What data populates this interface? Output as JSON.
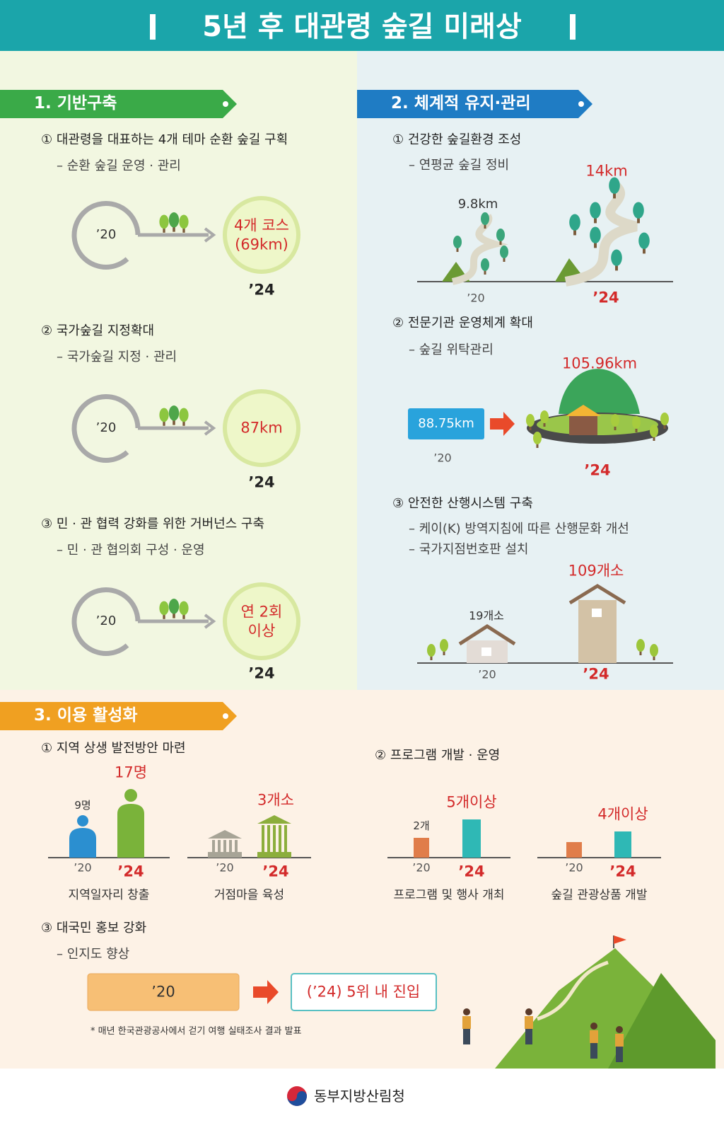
{
  "header": {
    "title": "5년 후 대관령 숲길 미래상"
  },
  "section1": {
    "title": "1. 기반구축",
    "items": [
      {
        "heading": "① 대관령을 대표하는 4개 테마 순환 숲길 구획",
        "sub": "– 순환 숲길 운영 · 관리",
        "from": "’20",
        "to": [
          "4개 코스",
          "(69km)"
        ],
        "year": "’24"
      },
      {
        "heading": "② 국가숲길 지정확대",
        "sub": "– 국가숲길 지정 · 관리",
        "from": "’20",
        "to": [
          "87km"
        ],
        "year": "’24"
      },
      {
        "heading": "③ 민 · 관 협력 강화를 위한 거버넌스 구축",
        "sub": "– 민 · 관 협의회 구성 · 운영",
        "from": "’20",
        "to": [
          "연 2회",
          "이상"
        ],
        "year": "’24"
      }
    ]
  },
  "section2": {
    "title": "2. 체계적 유지·관리",
    "items": [
      {
        "heading": "① 건강한 숲길환경 조성",
        "subs": [
          "– 연평균 숲길 정비"
        ],
        "before": "9.8km",
        "after": "14km",
        "year_before": "’20",
        "year_after": "’24"
      },
      {
        "heading": "② 전문기관 운영체계 확대",
        "subs": [
          "– 숲길 위탁관리"
        ],
        "before": "88.75km",
        "after": "105.96km",
        "year_before": "’20",
        "year_after": "’24"
      },
      {
        "heading": "③ 안전한 산행시스템 구축",
        "subs": [
          "– 케이(K) 방역지침에 따른 산행문화 개선",
          "– 국가지점번호판 설치"
        ],
        "before": "19개소",
        "after": "109개소",
        "year_before": "’20",
        "year_after": "’24"
      }
    ]
  },
  "section3": {
    "title": "3. 이용 활성화",
    "item1": {
      "heading": "① 지역 상생 발전방안 마련",
      "charts": [
        {
          "before": "9명",
          "after": "17명",
          "year_before": "’20",
          "year_after": "’24",
          "caption": "지역일자리 창출"
        },
        {
          "after": "3개소",
          "year_before": "’20",
          "year_after": "’24",
          "caption": "거점마을 육성"
        }
      ]
    },
    "item2": {
      "heading": "② 프로그램 개발 · 운영",
      "charts": [
        {
          "before": "2개",
          "after": "5개이상",
          "year_before": "’20",
          "year_after": "’24",
          "caption": "프로그램 및 행사 개최"
        },
        {
          "after": "4개이상",
          "year_before": "’20",
          "year_after": "’24",
          "caption": "숲길 관광상품 개발"
        }
      ]
    },
    "item3": {
      "heading": "③ 대국민 홍보 강화",
      "sub": "– 인지도 향상",
      "from": "’20",
      "to": "(’24) 5위 내 진입",
      "note": "* 매년 한국관광공사에서 걷기 여행 실태조사 결과 발표"
    }
  },
  "footer": {
    "org": "동부지방산림청"
  }
}
